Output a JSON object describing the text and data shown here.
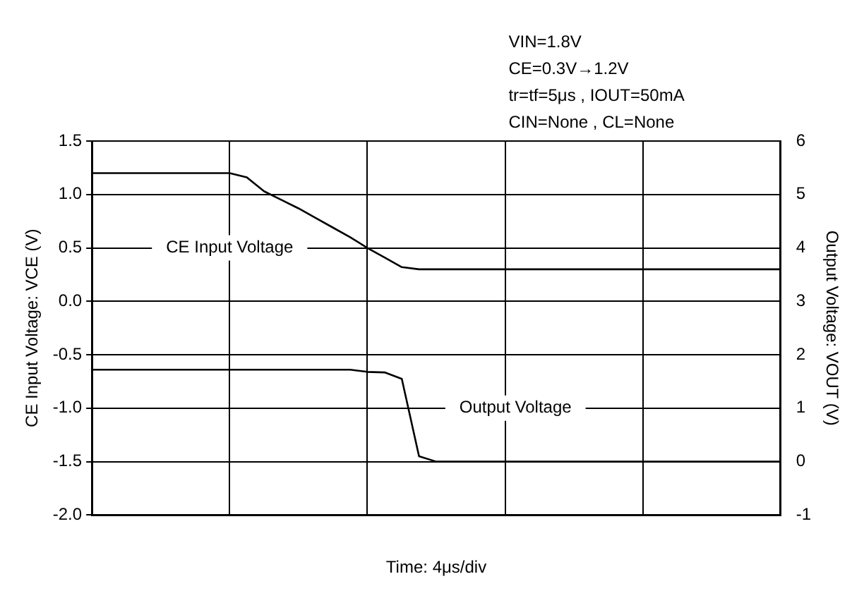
{
  "chart_data": {
    "type": "line",
    "annotations": [
      "VIN=1.8V",
      "CE=0.3V→1.2V",
      "tr=tf=5μs , IOUT=50mA",
      "CIN=None , CL=None"
    ],
    "xlabel": "Time: 4μs/div",
    "ylabel": "CE Input Voltage: VCE (V)",
    "y2label": "Output Voltage: VOUT (V)",
    "categories": [
      null,
      null,
      null,
      null,
      null,
      null,
      null,
      null,
      null,
      null,
      null,
      null,
      null,
      null,
      null,
      null,
      null,
      null,
      null,
      null,
      null,
      null,
      null,
      null,
      null,
      null,
      null,
      null,
      null,
      null,
      null,
      null,
      null,
      null,
      null,
      null,
      null,
      null,
      null,
      null,
      null
    ],
    "ylim": [
      -2,
      1.5
    ],
    "yticks": [
      {
        "value": -2,
        "label": "-2.0"
      },
      -1.5,
      {
        "value": -1,
        "label": "-1.0"
      },
      -0.5,
      {
        "value": 0,
        "label": "0.0"
      },
      0.5,
      {
        "value": 1,
        "label": "1.0"
      },
      1.5
    ],
    "y2lim": [
      -1,
      6
    ],
    "y2ticks": [
      -1,
      0,
      1,
      2,
      3,
      4,
      5,
      6
    ],
    "grid": true,
    "legend": false,
    "marker": "none",
    "line_style": "solid",
    "series": [
      {
        "name": "CE Input Voltage",
        "color": "#000000",
        "values": [
          1.2,
          1.2,
          1.2,
          1.2,
          1.2,
          1.2,
          1.2,
          1.2,
          1.2,
          1.16,
          1.03,
          0.95,
          0.87,
          0.78,
          0.69,
          0.6,
          0.5,
          0.41,
          0.32,
          0.3,
          0.3,
          0.3,
          0.3,
          0.3,
          0.3,
          0.3,
          0.3,
          0.3,
          0.3,
          0.3,
          0.3,
          0.3,
          0.3,
          0.3,
          0.3,
          0.3,
          0.3,
          0.3,
          0.3,
          0.3,
          0.3
        ]
      },
      {
        "name": "Output Voltage",
        "color": "#000000",
        "axis": "y2",
        "values": [
          1.72,
          1.72,
          1.72,
          1.72,
          1.72,
          1.72,
          1.72,
          1.72,
          1.72,
          1.72,
          1.72,
          1.72,
          1.72,
          1.72,
          1.72,
          1.72,
          1.68,
          1.67,
          1.55,
          0.1,
          0,
          0,
          0,
          0,
          0,
          0,
          0,
          0,
          0,
          0,
          0,
          0,
          0,
          0,
          0,
          0,
          0,
          0,
          0,
          0,
          0
        ]
      }
    ]
  }
}
